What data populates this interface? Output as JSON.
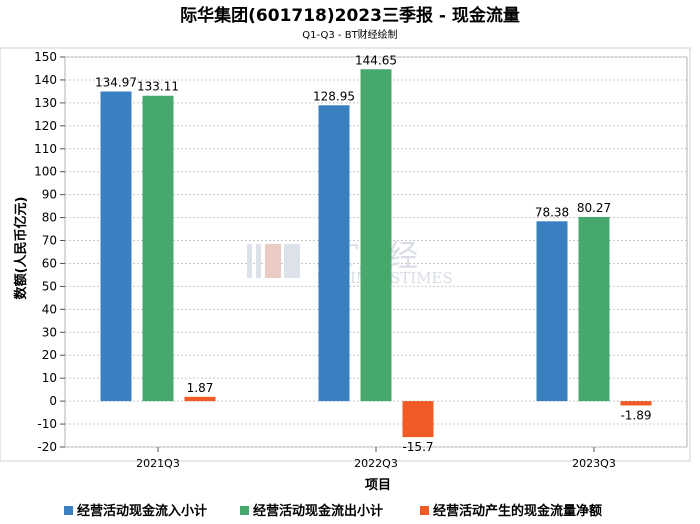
{
  "chart_data": {
    "type": "bar",
    "title": "际华集团(601718)2023三季报 - 现金流量",
    "subtitle": "Q1-Q3 - BT财经绘制",
    "xlabel": "项目",
    "ylabel": "数额(人民币亿元)",
    "categories": [
      "2021Q3",
      "2022Q3",
      "2023Q3"
    ],
    "series": [
      {
        "name": "经营活动现金流入小计",
        "color": "#3a80c0",
        "values": [
          134.97,
          128.95,
          78.38
        ],
        "labels": [
          "134.97",
          "128.95",
          "78.38"
        ]
      },
      {
        "name": "经营活动现金流出小计",
        "color": "#46a86c",
        "values": [
          133.11,
          144.65,
          80.27
        ],
        "labels": [
          "133.11",
          "144.65",
          "80.27"
        ]
      },
      {
        "name": "经营活动产生的现金流量净额",
        "color": "#f05a24",
        "values": [
          1.87,
          -15.7,
          -1.89
        ],
        "labels": [
          "1.87",
          "-15.7",
          "-1.89"
        ]
      }
    ],
    "ylim": [
      -20,
      150
    ],
    "yticks": [
      -20,
      -10,
      0,
      10,
      20,
      30,
      40,
      50,
      60,
      70,
      80,
      90,
      100,
      110,
      120,
      130,
      140,
      150
    ],
    "grid": true,
    "legend_position": "bottom"
  },
  "watermark": {
    "big": "BT财经",
    "small": "BUSINESSTIMES"
  }
}
